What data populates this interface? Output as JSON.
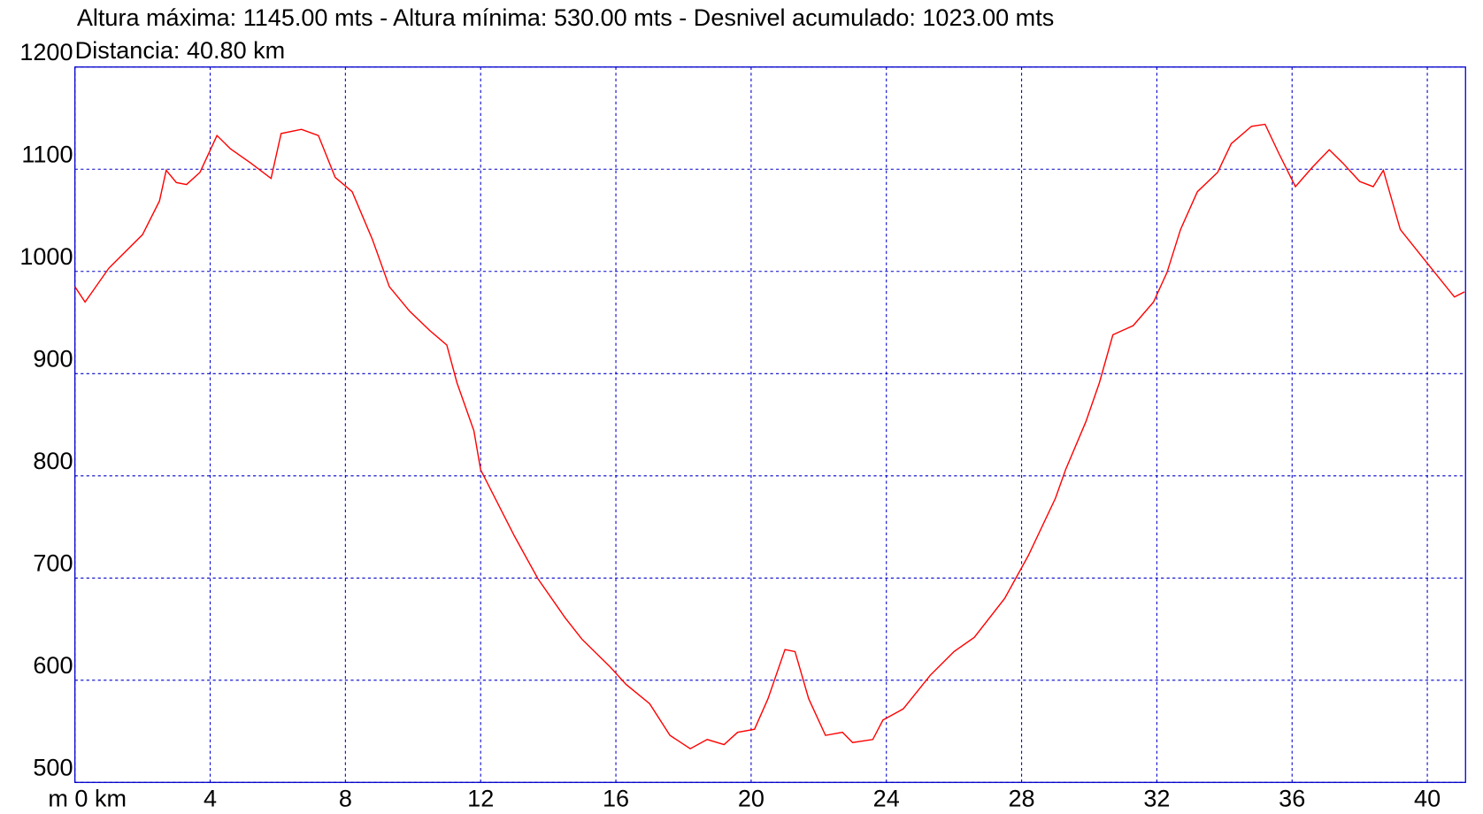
{
  "chart_data": {
    "type": "line",
    "title": "Altura máxima: 1145.00 mts - Altura mínima: 530.00 mts - Desnivel acumulado: 1023.00 mts",
    "subtitle": "Distancia: 40.80 km",
    "x": [
      0,
      0.3,
      1,
      2,
      2.5,
      2.7,
      3.0,
      3.3,
      3.7,
      4.2,
      4.6,
      5.2,
      5.8,
      6.1,
      6.7,
      7.2,
      7.7,
      8.2,
      8.8,
      9.3,
      9.9,
      10.5,
      11.0,
      11.3,
      11.8,
      12.0,
      13.0,
      13.7,
      14.5,
      15.0,
      15.8,
      16.3,
      17.0,
      17.6,
      18.2,
      18.7,
      19.2,
      19.6,
      20.1,
      20.5,
      21.0,
      21.3,
      21.7,
      22.2,
      22.7,
      23.0,
      23.6,
      23.9,
      24.5,
      25.3,
      26.0,
      26.6,
      27.5,
      28.2,
      29.0,
      29.3,
      29.9,
      30.3,
      30.7,
      31.3,
      31.9,
      32.3,
      32.7,
      33.2,
      33.8,
      34.2,
      34.8,
      35.2,
      35.6,
      36.1,
      36.6,
      37.1,
      37.5,
      38.0,
      38.4,
      38.7,
      39.2,
      40.0,
      40.8,
      41.1
    ],
    "series": [
      {
        "color": "#ff0000",
        "values": [
          985,
          970,
          1003,
          1036,
          1069,
          1099,
          1087,
          1085,
          1097,
          1133,
          1120,
          1106,
          1091,
          1135,
          1139,
          1133,
          1092,
          1078,
          1031,
          985,
          961,
          942,
          928,
          891,
          844,
          806,
          741,
          699,
          661,
          640,
          614,
          596,
          577,
          546,
          533,
          542,
          537,
          549,
          552,
          582,
          630,
          628,
          582,
          546,
          549,
          539,
          542,
          561,
          572,
          605,
          628,
          642,
          680,
          722,
          778,
          806,
          853,
          891,
          938,
          947,
          970,
          999,
          1041,
          1078,
          1097,
          1125,
          1142,
          1144,
          1116,
          1083,
          1102,
          1119,
          1106,
          1088,
          1083,
          1099,
          1041,
          1008,
          975,
          980
        ]
      }
    ],
    "xlim": [
      0,
      41.13
    ],
    "ylim": [
      500,
      1200
    ],
    "xticks": [
      {
        "value": 0,
        "label": "m 0 km"
      },
      4,
      8,
      12,
      16,
      20,
      24,
      28,
      32,
      36,
      40
    ],
    "yticks": [
      500,
      600,
      700,
      800,
      900,
      1000,
      1100,
      1200
    ],
    "grid": true,
    "grid_color": "#0000cc",
    "frame_color": "#0000cc"
  }
}
